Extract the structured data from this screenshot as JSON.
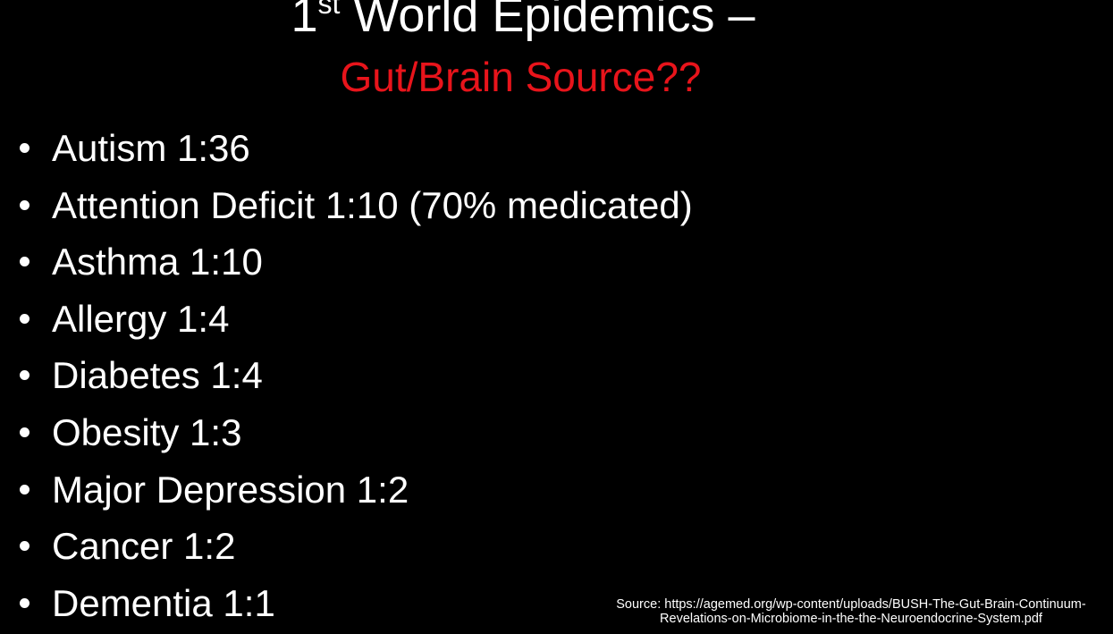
{
  "colors": {
    "background": "#000000",
    "text": "#ffffff",
    "accent": "#e8141b"
  },
  "slide": {
    "title": {
      "prefix": "1",
      "superscript": "st",
      "rest": " World Epidemics –",
      "subtitle": "Gut/Brain Source??"
    },
    "bullets": [
      "Autism 1:36",
      "Attention Deficit 1:10 (70% medicated)",
      "Asthma 1:10",
      "Allergy 1:4",
      "Diabetes 1:4",
      "Obesity 1:3",
      "Major Depression 1:2",
      "Cancer 1:2",
      "Dementia 1:1"
    ],
    "source": {
      "line1": "Source: https://agemed.org/wp-content/uploads/BUSH-The-Gut-Brain-Continuum-",
      "line2": "Revelations-on-Microbiome-in-the-the-Neuroendocrine-System.pdf"
    }
  }
}
